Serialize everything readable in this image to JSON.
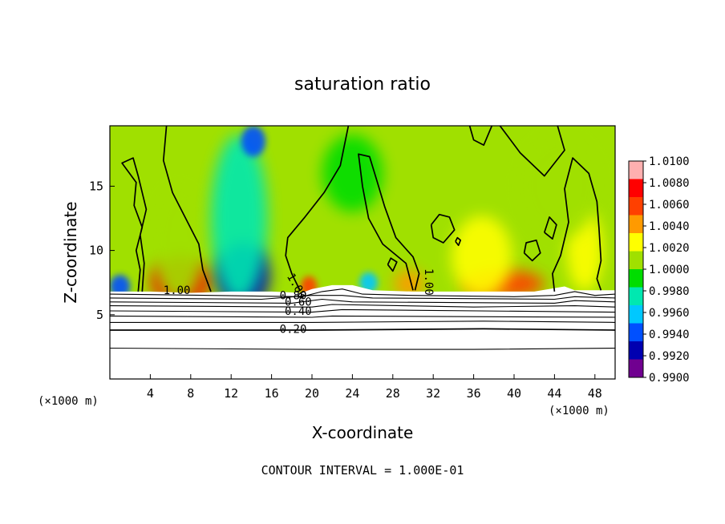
{
  "chart_data": {
    "type": "heatmap",
    "title": "saturation ratio",
    "xlabel": "X-coordinate",
    "ylabel": "Z-coordinate",
    "x_unit": "(×1000 m)",
    "y_unit": "(×1000 m)",
    "xlim": [
      0,
      50
    ],
    "ylim": [
      0,
      19.7
    ],
    "x_ticks": [
      4,
      8,
      12,
      16,
      20,
      24,
      28,
      32,
      36,
      40,
      44,
      48
    ],
    "y_ticks": [
      5,
      10,
      15
    ],
    "footer": "CONTOUR INTERVAL = 1.000E-01",
    "colorbar": {
      "min": 0.99,
      "max": 1.01,
      "labels": [
        "1.0100",
        "1.0080",
        "1.0060",
        "1.0040",
        "1.0020",
        "1.0000",
        "0.9980",
        "0.9960",
        "0.9940",
        "0.9920",
        "0.9900"
      ],
      "colors": [
        "#ffb0b0",
        "#ff0000",
        "#ff4000",
        "#ff9a00",
        "#ffff00",
        "#a0e000",
        "#00dd00",
        "#00e8b0",
        "#00c8ff",
        "#0050ff",
        "#0000b0",
        "#700090"
      ]
    },
    "contour_labels": [
      {
        "text": "1.00",
        "x": 5.3,
        "z": 6.6
      },
      {
        "text": "0.80",
        "x": 16.8,
        "z": 6.2
      },
      {
        "text": "0.60",
        "x": 17.3,
        "z": 5.7
      },
      {
        "text": "0.40",
        "x": 17.3,
        "z": 5.0
      },
      {
        "text": "0.20",
        "x": 16.8,
        "z": 3.6
      },
      {
        "text": "1.00",
        "x": 17.5,
        "z": 8.0,
        "rotate": 60
      },
      {
        "text": "1.00",
        "x": 31.2,
        "z": 8.6,
        "rotate": 90
      }
    ],
    "field": {
      "background_value": 1.0001,
      "anomalies": [
        {
          "x": 7.0,
          "z": 7.6,
          "rx": 2.9,
          "rz": 1.9,
          "value": 1.007
        },
        {
          "x": 6.8,
          "z": 10.5,
          "rx": 2.6,
          "rz": 4.5,
          "value": 1.0012
        },
        {
          "x": 13.2,
          "z": 8.0,
          "rx": 2.6,
          "rz": 2.6,
          "value": 0.9932
        },
        {
          "x": 12.8,
          "z": 12.5,
          "rx": 2.8,
          "rz": 6.5,
          "value": 0.9978
        },
        {
          "x": 14.2,
          "z": 18.5,
          "rx": 1.2,
          "rz": 1.2,
          "value": 0.995
        },
        {
          "x": 19.7,
          "z": 7.2,
          "rx": 0.8,
          "rz": 0.8,
          "value": 1.006
        },
        {
          "x": 29.6,
          "z": 7.4,
          "rx": 1.5,
          "rz": 1.1,
          "value": 1.004
        },
        {
          "x": 25.6,
          "z": 7.5,
          "rx": 0.9,
          "rz": 0.8,
          "value": 0.9955
        },
        {
          "x": 39.0,
          "z": 7.4,
          "rx": 4.0,
          "rz": 1.1,
          "value": 1.006
        },
        {
          "x": 36.8,
          "z": 9.5,
          "rx": 3.0,
          "rz": 3.2,
          "value": 1.0025
        },
        {
          "x": 47.0,
          "z": 10.0,
          "rx": 1.8,
          "rz": 3.2,
          "value": 1.002
        },
        {
          "x": 1.0,
          "z": 7.2,
          "rx": 1.0,
          "rz": 0.9,
          "value": 0.994
        },
        {
          "x": 24.0,
          "z": 16.0,
          "rx": 3.0,
          "rz": 3.0,
          "value": 0.9993
        },
        {
          "x": 44.5,
          "z": 15.0,
          "rx": 4.0,
          "rz": 4.0,
          "value": 1.0005
        }
      ],
      "saturated_top_z": [
        [
          0,
          6.8
        ],
        [
          4,
          6.8
        ],
        [
          8,
          6.7
        ],
        [
          12,
          6.8
        ],
        [
          16,
          6.8
        ],
        [
          19,
          6.7
        ],
        [
          20,
          7.0
        ],
        [
          22,
          7.3
        ],
        [
          24,
          7.3
        ],
        [
          26,
          6.9
        ],
        [
          30,
          6.8
        ],
        [
          34,
          6.8
        ],
        [
          38,
          6.8
        ],
        [
          42,
          6.8
        ],
        [
          45,
          7.2
        ],
        [
          46,
          6.9
        ],
        [
          50,
          6.9
        ]
      ]
    },
    "contour_lines": [
      {
        "level": 0.9,
        "points": [
          [
            0,
            6.6
          ],
          [
            10,
            6.5
          ],
          [
            19,
            6.4
          ],
          [
            21,
            6.8
          ],
          [
            23,
            7.0
          ],
          [
            25,
            6.6
          ],
          [
            30,
            6.5
          ],
          [
            40,
            6.4
          ],
          [
            44,
            6.5
          ],
          [
            46,
            6.8
          ],
          [
            48,
            6.5
          ],
          [
            50,
            6.6
          ]
        ]
      },
      {
        "level": 0.8,
        "points": [
          [
            0,
            6.3
          ],
          [
            15,
            6.2
          ],
          [
            20,
            6.5
          ],
          [
            23,
            6.5
          ],
          [
            26,
            6.3
          ],
          [
            44,
            6.2
          ],
          [
            46,
            6.4
          ],
          [
            50,
            6.3
          ]
        ]
      },
      {
        "level": 0.7,
        "points": [
          [
            0,
            6.0
          ],
          [
            18,
            5.9
          ],
          [
            21,
            6.2
          ],
          [
            24,
            6.0
          ],
          [
            44,
            5.9
          ],
          [
            46,
            6.1
          ],
          [
            50,
            6.0
          ]
        ]
      },
      {
        "level": 0.6,
        "points": [
          [
            0,
            5.7
          ],
          [
            20,
            5.6
          ],
          [
            22,
            5.8
          ],
          [
            36,
            5.6
          ],
          [
            46,
            5.7
          ],
          [
            50,
            5.6
          ]
        ]
      },
      {
        "level": 0.5,
        "points": [
          [
            0,
            5.3
          ],
          [
            20,
            5.2
          ],
          [
            23,
            5.4
          ],
          [
            50,
            5.2
          ]
        ]
      },
      {
        "level": 0.4,
        "points": [
          [
            0,
            4.9
          ],
          [
            20,
            4.8
          ],
          [
            22,
            4.9
          ],
          [
            50,
            4.8
          ]
        ]
      },
      {
        "level": 0.3,
        "points": [
          [
            0,
            4.4
          ],
          [
            20,
            4.4
          ],
          [
            37,
            4.5
          ],
          [
            50,
            4.4
          ]
        ]
      },
      {
        "level": 0.2,
        "points": [
          [
            0,
            3.8
          ],
          [
            20,
            3.8
          ],
          [
            37,
            3.9
          ],
          [
            50,
            3.8
          ]
        ]
      },
      {
        "level": 0.1,
        "points": [
          [
            0,
            2.4
          ],
          [
            20,
            2.3
          ],
          [
            36,
            2.3
          ],
          [
            50,
            2.4
          ]
        ]
      },
      {
        "level": 1.0,
        "points": [
          [
            2.8,
            6.8
          ],
          [
            3.0,
            8.5
          ],
          [
            2.6,
            10.0
          ],
          [
            3.2,
            11.8
          ],
          [
            2.4,
            13.5
          ],
          [
            2.6,
            15.3
          ],
          [
            1.2,
            16.8
          ],
          [
            2.3,
            17.2
          ],
          [
            2.8,
            15.8
          ],
          [
            3.6,
            13.2
          ],
          [
            3.0,
            11.2
          ],
          [
            3.4,
            9.0
          ],
          [
            3.2,
            6.8
          ]
        ]
      },
      {
        "level": 1.0,
        "points": [
          [
            5.6,
            19.7
          ],
          [
            5.3,
            17.0
          ],
          [
            6.2,
            14.5
          ],
          [
            7.5,
            12.5
          ],
          [
            8.8,
            10.5
          ],
          [
            9.2,
            8.5
          ],
          [
            10.0,
            6.8
          ]
        ]
      },
      {
        "level": 1.0,
        "points": [
          [
            18.8,
            6.9
          ],
          [
            18.0,
            8.2
          ],
          [
            17.4,
            9.6
          ],
          [
            17.6,
            11.0
          ],
          [
            19.3,
            12.6
          ],
          [
            21.2,
            14.5
          ],
          [
            22.8,
            16.6
          ],
          [
            23.6,
            19.7
          ]
        ]
      },
      {
        "level": 1.0,
        "points": [
          [
            30.2,
            6.9
          ],
          [
            30.6,
            8.2
          ],
          [
            30.0,
            9.5
          ],
          [
            28.3,
            11.0
          ],
          [
            27.2,
            13.4
          ],
          [
            26.4,
            15.5
          ],
          [
            25.7,
            17.3
          ],
          [
            24.6,
            17.5
          ],
          [
            25.0,
            15.0
          ],
          [
            25.6,
            12.5
          ],
          [
            27.0,
            10.5
          ],
          [
            29.3,
            9.0
          ],
          [
            30.0,
            6.9
          ]
        ]
      },
      {
        "level": 1.0,
        "points": [
          [
            31.8,
            12.0
          ],
          [
            32.0,
            11.0
          ],
          [
            33.0,
            10.6
          ],
          [
            34.1,
            11.6
          ],
          [
            33.6,
            12.6
          ],
          [
            32.6,
            12.8
          ],
          [
            31.8,
            12.0
          ]
        ]
      },
      {
        "level": 1.0,
        "points": [
          [
            35.6,
            19.7
          ],
          [
            36.0,
            18.6
          ],
          [
            37.0,
            18.2
          ],
          [
            37.8,
            19.7
          ]
        ]
      },
      {
        "level": 1.0,
        "points": [
          [
            41.0,
            9.8
          ],
          [
            41.8,
            9.2
          ],
          [
            42.6,
            9.8
          ],
          [
            42.2,
            10.8
          ],
          [
            41.2,
            10.6
          ],
          [
            41.0,
            9.8
          ]
        ]
      },
      {
        "level": 1.0,
        "points": [
          [
            43.0,
            11.4
          ],
          [
            43.8,
            10.9
          ],
          [
            44.2,
            12.0
          ],
          [
            43.5,
            12.6
          ],
          [
            43.0,
            11.4
          ]
        ]
      },
      {
        "level": 1.0,
        "points": [
          [
            44.0,
            6.8
          ],
          [
            43.8,
            8.2
          ],
          [
            44.6,
            9.6
          ],
          [
            45.4,
            12.2
          ],
          [
            45.0,
            14.8
          ],
          [
            45.8,
            17.2
          ],
          [
            47.4,
            16.0
          ],
          [
            48.2,
            13.8
          ],
          [
            48.4,
            11.8
          ],
          [
            48.6,
            9.2
          ],
          [
            48.2,
            7.8
          ],
          [
            48.6,
            6.9
          ]
        ]
      },
      {
        "level": 1.0,
        "points": [
          [
            38.6,
            19.7
          ],
          [
            40.6,
            17.6
          ],
          [
            43.0,
            15.8
          ],
          [
            45.0,
            17.8
          ],
          [
            44.3,
            19.7
          ]
        ]
      },
      {
        "level": 1.0,
        "points": [
          [
            27.5,
            8.9
          ],
          [
            28.0,
            8.4
          ],
          [
            28.4,
            9.1
          ],
          [
            27.8,
            9.4
          ],
          [
            27.5,
            8.9
          ]
        ]
      },
      {
        "level": 1.0,
        "points": [
          [
            34.2,
            10.7
          ],
          [
            34.5,
            10.4
          ],
          [
            34.7,
            10.8
          ],
          [
            34.4,
            11.0
          ],
          [
            34.2,
            10.7
          ]
        ]
      }
    ]
  }
}
